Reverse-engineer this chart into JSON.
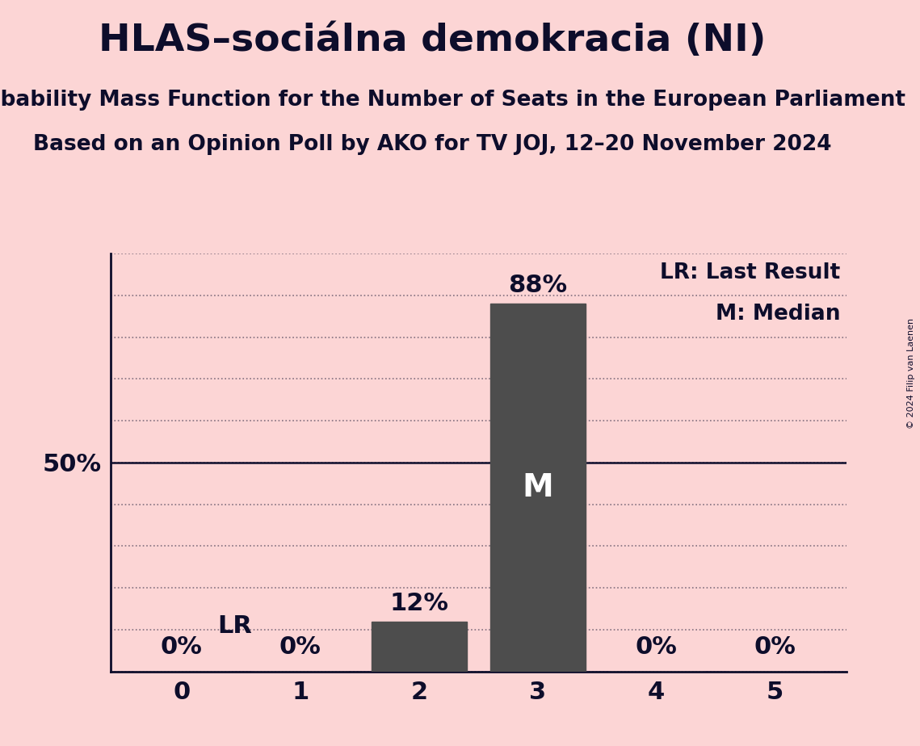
{
  "title": "HLAS–sociálna demokracia (NI)",
  "subtitle1": "Probability Mass Function for the Number of Seats in the European Parliament",
  "subtitle2": "Based on an Opinion Poll by AKO for TV JOJ, 12–20 November 2024",
  "categories": [
    0,
    1,
    2,
    3,
    4,
    5
  ],
  "values": [
    0,
    0,
    12,
    88,
    0,
    0
  ],
  "bar_color": "#4d4d4d",
  "background_color": "#fcd5d5",
  "title_fontsize": 34,
  "subtitle_fontsize": 19,
  "bar_label_fontsize": 22,
  "tick_fontsize": 22,
  "legend_fontsize": 19,
  "ylim": [
    0,
    100
  ],
  "yticks": [
    0,
    10,
    20,
    30,
    40,
    50,
    60,
    70,
    80,
    90,
    100
  ],
  "lr_bar_index": 0,
  "median_bar_index": 3,
  "lr_label": "LR",
  "median_label": "M",
  "legend_lr": "LR: Last Result",
  "legend_m": "M: Median",
  "copyright": "© 2024 Filip van Laenen",
  "text_color": "#0d0d2b",
  "grid_color": "#0d0d2b"
}
